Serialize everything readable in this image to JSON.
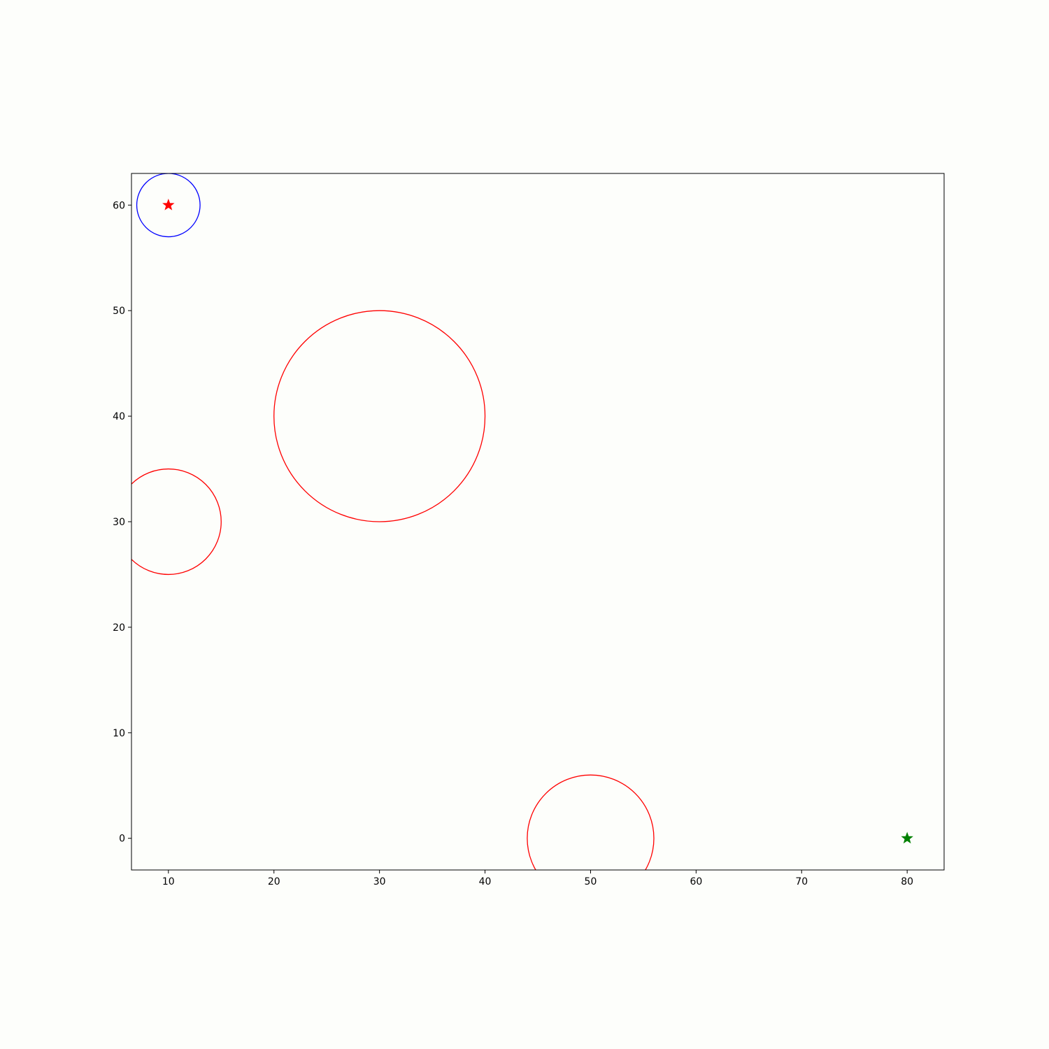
{
  "chart_data": {
    "type": "scatter",
    "title": "",
    "xlabel": "",
    "ylabel": "",
    "xlim": [
      6.5,
      83.5
    ],
    "ylim": [
      -3,
      63
    ],
    "grid": false,
    "xticks": [
      10,
      20,
      30,
      40,
      50,
      60,
      70,
      80
    ],
    "yticks": [
      0,
      10,
      20,
      30,
      40,
      50,
      60
    ],
    "circles": [
      {
        "cx": 10,
        "cy": 60,
        "r": 3,
        "color": "#0000ff"
      },
      {
        "cx": 30,
        "cy": 40,
        "r": 10,
        "color": "#ff0000"
      },
      {
        "cx": 10,
        "cy": 30,
        "r": 5,
        "color": "#ff0000"
      },
      {
        "cx": 50,
        "cy": 0,
        "r": 6,
        "color": "#ff0000"
      }
    ],
    "markers": [
      {
        "x": 10,
        "y": 60,
        "shape": "star",
        "color": "#ff0000"
      },
      {
        "x": 80,
        "y": 0,
        "shape": "star",
        "color": "#008000"
      }
    ]
  }
}
